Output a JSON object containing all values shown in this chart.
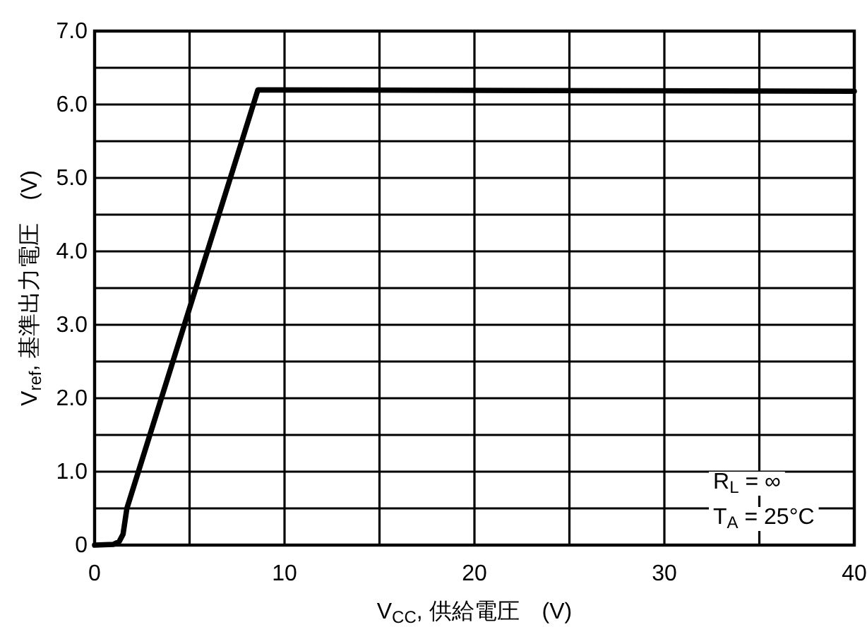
{
  "chart_data": {
    "type": "line",
    "xlabel": "V$_{CC}$, 供給電圧　(V)",
    "ylabel": "V$_{ref}$, 基準出力電圧　(V)",
    "annotations": [
      "R$_{L}$ = ∞",
      "T$_{A}$ = 25°C"
    ],
    "x": [
      0,
      1,
      1.3,
      1.5,
      1.7,
      8.6,
      40
    ],
    "values": [
      0,
      0.01,
      0.05,
      0.15,
      0.5,
      6.2,
      6.18
    ],
    "color": "#000000",
    "xlim": [
      0,
      40
    ],
    "ylim": [
      0,
      7
    ],
    "xticks": [
      0,
      {
        "value": 5,
        "label": null
      },
      10,
      {
        "value": 15,
        "label": null
      },
      20,
      {
        "value": 25,
        "label": null
      },
      30,
      {
        "value": 35,
        "label": null
      },
      40
    ],
    "yticks": [
      {
        "value": 0,
        "label": "0"
      },
      {
        "value": 0.5,
        "label": null
      },
      {
        "value": 1,
        "label": "1.0"
      },
      {
        "value": 1.5,
        "label": null
      },
      {
        "value": 2,
        "label": "2.0"
      },
      {
        "value": 2.5,
        "label": null
      },
      {
        "value": 3,
        "label": "3.0"
      },
      {
        "value": 3.5,
        "label": null
      },
      {
        "value": 4,
        "label": "4.0"
      },
      {
        "value": 4.5,
        "label": null
      },
      {
        "value": 5,
        "label": "5.0"
      },
      {
        "value": 5.5,
        "label": null
      },
      {
        "value": 6,
        "label": "6.0"
      },
      {
        "value": 6.5,
        "label": null
      },
      {
        "value": 7,
        "label": "7.0"
      }
    ],
    "grid": true
  }
}
